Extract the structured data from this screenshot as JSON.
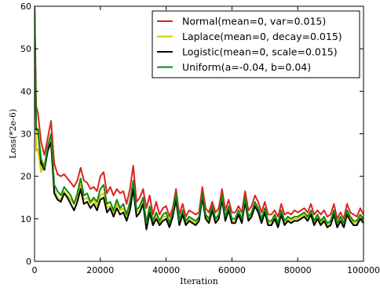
{
  "chart_data": {
    "type": "line",
    "xlabel": "Iteration",
    "ylabel": "Loss(*2e-6)",
    "xlim": [
      0,
      100000
    ],
    "ylim": [
      0,
      60
    ],
    "xticks": [
      0,
      20000,
      40000,
      60000,
      80000,
      100000
    ],
    "yticks": [
      0,
      10,
      20,
      30,
      40,
      50,
      60
    ],
    "x_tick_labels": [
      "0",
      "20000",
      "40000",
      "60000",
      "80000",
      "100000"
    ],
    "y_tick_labels": [
      "0",
      "10",
      "20",
      "30",
      "40",
      "50",
      "60"
    ],
    "legend_position": "top-right",
    "grid": false,
    "x": [
      0,
      500,
      1000,
      2000,
      3000,
      4000,
      5000,
      6000,
      7000,
      8000,
      9000,
      10000,
      11000,
      12000,
      13000,
      14000,
      15000,
      16000,
      17000,
      18000,
      19000,
      20000,
      21000,
      22000,
      23000,
      24000,
      25000,
      26000,
      27000,
      28000,
      29000,
      30000,
      31000,
      32000,
      33000,
      34000,
      35000,
      36000,
      37000,
      38000,
      39000,
      40000,
      41000,
      42000,
      43000,
      44000,
      45000,
      46000,
      47000,
      48000,
      49000,
      50000,
      51000,
      52000,
      53000,
      54000,
      55000,
      56000,
      57000,
      58000,
      59000,
      60000,
      61000,
      62000,
      63000,
      64000,
      65000,
      66000,
      67000,
      68000,
      69000,
      70000,
      71000,
      72000,
      73000,
      74000,
      75000,
      76000,
      77000,
      78000,
      79000,
      80000,
      81000,
      82000,
      83000,
      84000,
      85000,
      86000,
      87000,
      88000,
      89000,
      90000,
      91000,
      92000,
      93000,
      94000,
      95000,
      96000,
      97000,
      98000,
      99000,
      100000
    ],
    "series": [
      {
        "name": "Normal(mean=0, var=0.015)",
        "color": "#dd2222",
        "values": [
          60,
          36.5,
          35,
          28,
          25,
          29,
          33,
          23,
          20.5,
          20,
          20.5,
          19.5,
          18.5,
          17.5,
          19,
          22,
          19,
          18.5,
          17,
          17.5,
          16.5,
          20,
          21,
          16,
          17.5,
          15.5,
          17,
          16,
          16.5,
          13.5,
          17,
          22.5,
          14,
          15,
          17,
          12.5,
          15.5,
          11,
          14,
          11,
          12.5,
          13,
          10.5,
          12.5,
          17,
          11,
          13.5,
          10.5,
          12,
          11.5,
          11,
          11.5,
          17.5,
          12.5,
          11.5,
          14,
          11.5,
          12.5,
          17,
          12,
          14.5,
          11.5,
          11.5,
          13,
          11.5,
          16.5,
          12,
          13,
          15.5,
          14,
          11.5,
          14,
          11,
          11,
          12,
          10.5,
          13.5,
          11,
          11.5,
          11,
          12,
          11.5,
          12,
          12.5,
          11.5,
          13.5,
          11,
          12,
          11,
          12,
          10.5,
          11,
          13.5,
          10,
          11.5,
          10,
          13.5,
          11.5,
          11,
          10.5,
          12.5,
          11
        ]
      },
      {
        "name": "Laplace(mean=0, decay=0.015)",
        "color": "#cccc00",
        "values": [
          60,
          26,
          26.5,
          21,
          23,
          26,
          29,
          17,
          15,
          14.5,
          16.5,
          15.5,
          14.5,
          13.5,
          15,
          18,
          14.5,
          15,
          13.5,
          14.5,
          13,
          15.5,
          16,
          12.5,
          13,
          11.5,
          13.5,
          12,
          12.5,
          10,
          13,
          17.5,
          11.5,
          12,
          14,
          9,
          12.5,
          9,
          11,
          9,
          10.5,
          10.5,
          8.5,
          11,
          15,
          9,
          11.5,
          9,
          10,
          9.5,
          9,
          10,
          15.5,
          10.5,
          9.5,
          12.5,
          9.5,
          10.5,
          15,
          10,
          12.5,
          9.5,
          9.5,
          11.5,
          9.5,
          14.5,
          10,
          11,
          13.5,
          12,
          9.5,
          12,
          9,
          9,
          10.5,
          8.5,
          11.5,
          9,
          10,
          9.5,
          10,
          10,
          10.5,
          11,
          10,
          11.5,
          9,
          10.5,
          9,
          10,
          8.5,
          9,
          11.5,
          8.5,
          10,
          8.5,
          11.5,
          10,
          9,
          9,
          10.5,
          9.5
        ]
      },
      {
        "name": "Logistic(mean=0, scale=0.015)",
        "color": "#000000",
        "values": [
          60,
          31,
          31,
          23,
          21.5,
          26,
          28,
          16,
          14.5,
          14,
          16,
          15,
          13.5,
          12,
          14,
          17,
          13.5,
          14,
          12.5,
          13.5,
          12,
          14.5,
          15,
          11.5,
          12.5,
          10.5,
          12.5,
          11,
          11.5,
          9.5,
          12,
          17,
          10.5,
          11.5,
          13.5,
          7.5,
          11.5,
          8.5,
          10,
          8.5,
          9.5,
          10,
          8,
          10.5,
          14.5,
          8.5,
          11,
          8.5,
          9.5,
          9,
          8.5,
          9.5,
          15,
          10,
          9,
          12,
          9,
          10,
          14.5,
          9.5,
          12,
          9,
          9,
          11,
          9,
          14,
          9.5,
          10.5,
          13,
          11.5,
          9,
          11.5,
          8.5,
          8.5,
          10,
          8,
          11,
          8.5,
          9.5,
          9,
          9.5,
          9.5,
          10,
          10.5,
          9.5,
          11,
          8.5,
          10,
          8.5,
          9.5,
          8,
          8.5,
          11,
          8,
          9.5,
          8,
          11,
          9.5,
          8.5,
          8.5,
          10,
          9
        ]
      },
      {
        "name": "Uniform(a=-0.04, b=0.04)",
        "color": "#118811",
        "values": [
          60,
          31.5,
          31,
          24,
          22,
          27,
          30,
          18,
          16.5,
          15.5,
          17.5,
          16.5,
          15.5,
          13.5,
          16,
          19.5,
          15.5,
          16,
          14,
          15,
          14,
          17,
          18,
          13.5,
          14,
          12,
          14.5,
          12.5,
          13.5,
          11,
          14,
          19,
          12,
          13,
          15,
          9,
          13,
          9.5,
          11.5,
          9.5,
          11,
          11.5,
          9,
          11.5,
          16,
          9.5,
          12,
          9.5,
          10.5,
          10,
          9.5,
          10.5,
          16,
          11,
          10,
          13,
          10,
          11,
          15.5,
          10.5,
          13,
          10,
          10,
          12,
          10,
          15,
          10.5,
          11.5,
          14,
          12.5,
          10,
          12.5,
          9.5,
          9.5,
          11,
          9,
          12,
          9.5,
          10.5,
          10,
          10.5,
          10.5,
          11,
          11.5,
          10.5,
          12,
          9.5,
          11,
          9.5,
          10.5,
          9,
          9.5,
          12,
          9,
          10.5,
          9,
          12,
          10.5,
          9.5,
          9.5,
          11,
          10
        ]
      }
    ]
  }
}
